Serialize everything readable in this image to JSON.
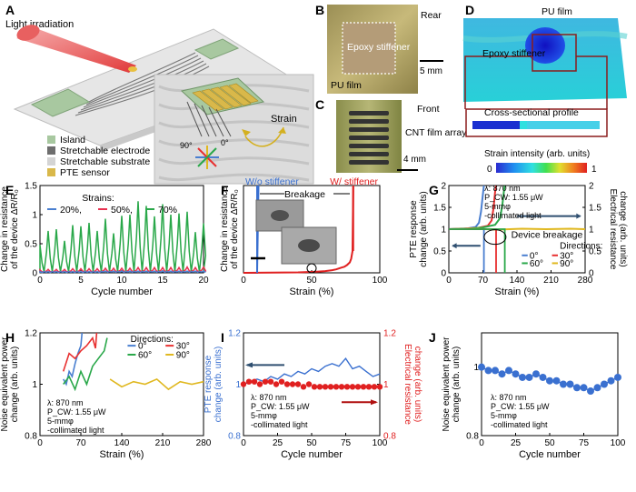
{
  "panels": {
    "A": {
      "letter": "A",
      "light": "Light irradiation",
      "strain": "Strain",
      "deg90": "90°",
      "deg0": "0°",
      "legend": [
        "Island",
        "Stretchable electrode",
        "Stretchable substrate",
        "PTE sensor"
      ],
      "legend_colors": [
        "#a8c8a0",
        "#6e6e6e",
        "#d4d4d4",
        "#d9b84a"
      ]
    },
    "B": {
      "letter": "B",
      "side": "Rear",
      "epoxy": "Epoxy stiffener",
      "pu": "PU film",
      "scale": "5 mm"
    },
    "C": {
      "letter": "C",
      "side": "Front",
      "cnt": "CNT film array",
      "scale": "4 mm"
    },
    "D": {
      "letter": "D",
      "pu": "PU film",
      "epoxy": "Epoxy stiffener",
      "cross": "Cross-sectional profile",
      "cbar_label": "Strain intensity (arb. units)",
      "cbar_min": "0",
      "cbar_max": "1"
    },
    "E": {
      "letter": "E",
      "ylabel": "Change in resistance of the device ΔR/R₀",
      "xlabel": "Cycle number",
      "legend_title": "Strains:",
      "legend": [
        "20%,",
        "50%,",
        "70%"
      ]
    },
    "F": {
      "letter": "F",
      "ylabel": "Change in resistance of the device ΔR/R₀",
      "xlabel": "Strain (%)",
      "wo": "W/o stiffener",
      "w": "W/ stiffener",
      "breakage": "Breakage"
    },
    "G": {
      "letter": "G",
      "ylabel": "PTE response change (arb. units)",
      "ylabel2": "Electrical resistance change (arb. units)",
      "xlabel": "Strain (%)",
      "cond": [
        "λ: 870 nm",
        "P_CW: 1.55 μW",
        "5-mmφ",
        "-collimated light"
      ],
      "breakage": "Device breakage",
      "dir_title": "Directions:",
      "dirs": [
        "0°",
        "30°",
        "60°",
        "90°"
      ]
    },
    "H": {
      "letter": "H",
      "ylabel": "Noise equivalent power change (arb. units)",
      "xlabel": "Strain (%)",
      "dir_title": "Directions:",
      "dirs": [
        "0°",
        "30°",
        "60°",
        "90°"
      ],
      "cond": [
        "λ: 870 nm",
        "P_CW: 1.55 μW",
        "5-mmφ",
        "-collimated light"
      ]
    },
    "I": {
      "letter": "I",
      "ylabel": "PTE response change (arb. units)",
      "ylabel2": "Electrical resistance change (arb. units)",
      "xlabel": "Cycle number",
      "cond": [
        "λ: 870 nm",
        "P_CW: 1.55 μW",
        "5-mmφ",
        "-collimated light"
      ]
    },
    "J": {
      "letter": "J",
      "ylabel": "Noise equivalent power change (arb. units)",
      "xlabel": "Cycle number",
      "cond": [
        "λ: 870 nm",
        "P_CW: 1.55 μW",
        "5-mmφ",
        "-collimated light"
      ]
    }
  },
  "colors": {
    "c0": "#4a7fd0",
    "c30": "#e83030",
    "c60": "#2aa84a",
    "c90": "#e0b820",
    "red": "#e02020",
    "blue": "#3a70d0",
    "navy": "#2f4f70"
  },
  "chart_data": [
    {
      "id": "E",
      "type": "line",
      "xlabel": "Cycle number",
      "ylabel": "Change in resistance of the device ΔR/R₀",
      "xlim": [
        0,
        20
      ],
      "ylim": [
        0,
        1.5
      ],
      "xticks": [
        0,
        5,
        10,
        15,
        20
      ],
      "yticks": [
        0,
        0.5,
        1,
        1.5
      ],
      "series": [
        {
          "name": "70%",
          "color": "#2aa84a",
          "peaks": [
            0.48,
            0.72,
            0.75,
            0.55,
            0.82,
            0.8,
            0.86,
            0.72,
            0.93,
            0.68,
            0.98,
            1.0,
            1.23,
            1.15,
            0.97,
            1.18,
            1.0,
            1.02,
            1.05,
            0.7,
            0.85
          ]
        },
        {
          "name": "50%",
          "color": "#e83050",
          "peaks": [
            0.05,
            0.06,
            0.06,
            0.06,
            0.07,
            0.07,
            0.07,
            0.07,
            0.08,
            0.08,
            0.08,
            0.08,
            0.09,
            0.09,
            0.09,
            0.09,
            0.09,
            0.09,
            0.1,
            0.09,
            0.1
          ]
        },
        {
          "name": "20%",
          "color": "#4a7fd0",
          "peaks": [
            0.02,
            0.02,
            0.02,
            0.02,
            0.02,
            0.02,
            0.02,
            0.02,
            0.03,
            0.03,
            0.03,
            0.03,
            0.03,
            0.03,
            0.03,
            0.03,
            0.03,
            0.03,
            0.03,
            0.03,
            0.03
          ]
        }
      ]
    },
    {
      "id": "F",
      "type": "line",
      "xlabel": "Strain (%)",
      "ylim_text": "",
      "xlim": [
        0,
        100
      ],
      "xticks": [
        0,
        50,
        100
      ],
      "series": [
        {
          "name": "W/o stiffener",
          "color": "#3a70d0",
          "x": [
            0,
            10,
            10,
            11
          ],
          "y": [
            0,
            0,
            0,
            1
          ]
        },
        {
          "name": "W/ stiffener",
          "color": "#e02020",
          "x": [
            0,
            40,
            50,
            55,
            60,
            65,
            68,
            70,
            72,
            74,
            76,
            78,
            79,
            80,
            80.5
          ],
          "y": [
            0,
            0.005,
            0.01,
            0.015,
            0.02,
            0.03,
            0.04,
            0.05,
            0.06,
            0.07,
            0.09,
            0.12,
            0.16,
            0.25,
            1
          ]
        }
      ]
    },
    {
      "id": "G",
      "type": "line",
      "xlabel": "Strain (%)",
      "xlim": [
        0,
        280
      ],
      "ylim": [
        0,
        2
      ],
      "y2lim": [
        0,
        2
      ],
      "xticks": [
        0,
        70,
        140,
        210,
        280
      ],
      "yticks": [
        0,
        0.5,
        1,
        1.5,
        2
      ],
      "series": [
        {
          "name": "0°",
          "color": "#4a7fd0",
          "x": [
            0,
            20,
            40,
            55,
            62,
            66,
            70,
            72
          ],
          "y": [
            1,
            1.01,
            1.02,
            1.05,
            1.15,
            1.4,
            1.8,
            2
          ]
        },
        {
          "name": "30°",
          "color": "#e83030",
          "x": [
            0,
            30,
            60,
            80,
            88,
            92,
            95,
            97
          ],
          "y": [
            1,
            1.01,
            1.03,
            1.08,
            1.2,
            1.5,
            1.85,
            2
          ]
        },
        {
          "name": "60°",
          "color": "#2aa84a",
          "x": [
            0,
            40,
            70,
            95,
            105,
            110,
            113,
            115
          ],
          "y": [
            1,
            1.01,
            1.04,
            1.1,
            1.25,
            1.55,
            1.85,
            2
          ]
        },
        {
          "name": "90°",
          "color": "#e0b820",
          "x": [
            0,
            50,
            100,
            150,
            200,
            250,
            280
          ],
          "y": [
            1,
            1.01,
            0.99,
            1.01,
            1.0,
            1.01,
            1.0
          ]
        },
        {
          "name": "resistance 0°",
          "color": "#4a7fd0",
          "axis": "right",
          "x": [
            0,
            60,
            72,
            72
          ],
          "y": [
            1,
            1,
            1,
            0
          ]
        },
        {
          "name": "resistance 30°",
          "color": "#e83030",
          "axis": "right",
          "x": [
            0,
            85,
            97,
            97
          ],
          "y": [
            1,
            1,
            1,
            0
          ]
        },
        {
          "name": "resistance 60°",
          "color": "#2aa84a",
          "axis": "right",
          "x": [
            0,
            100,
            115,
            115
          ],
          "y": [
            1,
            1,
            1,
            0
          ]
        }
      ]
    },
    {
      "id": "H",
      "type": "line",
      "xlabel": "Strain (%)",
      "xlim": [
        0,
        280
      ],
      "ylim": [
        0.8,
        1.2
      ],
      "xticks": [
        0,
        70,
        140,
        210,
        280
      ],
      "yticks": [
        0.8,
        1,
        1.2
      ],
      "series": [
        {
          "name": "0°",
          "color": "#4a7fd0",
          "x": [
            40,
            45,
            50,
            55,
            60,
            65,
            70,
            72
          ],
          "y": [
            1.02,
            1.0,
            1.05,
            1.03,
            1.08,
            1.12,
            1.15,
            1.2
          ]
        },
        {
          "name": "30°",
          "color": "#e83030",
          "x": [
            40,
            50,
            60,
            70,
            80,
            90,
            95,
            97
          ],
          "y": [
            1.05,
            1.12,
            1.1,
            1.13,
            1.15,
            1.18,
            1.14,
            1.2
          ]
        },
        {
          "name": "60°",
          "color": "#2aa84a",
          "x": [
            40,
            50,
            60,
            70,
            80,
            90,
            100,
            110,
            115
          ],
          "y": [
            1.0,
            1.03,
            0.98,
            1.05,
            1.0,
            1.07,
            1.1,
            1.13,
            1.18
          ]
        },
        {
          "name": "90°",
          "color": "#e0b820",
          "x": [
            120,
            140,
            160,
            180,
            200,
            220,
            240,
            260,
            280
          ],
          "y": [
            1.02,
            0.99,
            1.01,
            1.0,
            1.02,
            0.98,
            1.01,
            1.0,
            1.01
          ]
        }
      ]
    },
    {
      "id": "I",
      "type": "line",
      "xlabel": "Cycle number",
      "xlim": [
        0,
        100
      ],
      "ylim": [
        0.8,
        1.2
      ],
      "y2lim": [
        0.8,
        1.2
      ],
      "xticks": [
        0,
        25,
        50,
        75,
        100
      ],
      "yticks": [
        0.8,
        1,
        1.2
      ],
      "series": [
        {
          "name": "PTE response",
          "color": "#3a70d0",
          "x": [
            0,
            5,
            10,
            15,
            20,
            25,
            30,
            35,
            40,
            45,
            50,
            55,
            60,
            65,
            70,
            75,
            80,
            85,
            90,
            95,
            100
          ],
          "y": [
            1.0,
            1.01,
            1.02,
            1.01,
            1.03,
            1.02,
            1.04,
            1.03,
            1.05,
            1.04,
            1.06,
            1.05,
            1.07,
            1.08,
            1.07,
            1.1,
            1.06,
            1.07,
            1.05,
            1.03,
            1.04
          ]
        },
        {
          "name": "Electrical resistance",
          "color": "#e02020",
          "axis": "right",
          "x": [
            0,
            4,
            8,
            12,
            16,
            20,
            24,
            28,
            32,
            36,
            40,
            44,
            48,
            52,
            56,
            60,
            64,
            68,
            72,
            76,
            80,
            84,
            88,
            92,
            96,
            100
          ],
          "y": [
            1.0,
            1.01,
            1.01,
            1.0,
            1.01,
            1.01,
            1.0,
            1.01,
            1.0,
            1.0,
            1.0,
            0.99,
            1.0,
            0.99,
            0.99,
            0.99,
            0.99,
            0.99,
            0.99,
            0.99,
            0.99,
            0.99,
            0.99,
            0.99,
            0.99,
            0.99
          ]
        }
      ]
    },
    {
      "id": "J",
      "type": "scatter",
      "xlabel": "Cycle number",
      "xlim": [
        0,
        100
      ],
      "ylim": [
        0.8,
        1.1
      ],
      "xticks": [
        0,
        25,
        50,
        75,
        100
      ],
      "yticks": [
        0.8,
        1
      ],
      "series": [
        {
          "name": "NEP",
          "color": "#3a70d0",
          "x": [
            0,
            5,
            10,
            15,
            20,
            25,
            30,
            35,
            40,
            45,
            50,
            55,
            60,
            65,
            70,
            75,
            80,
            85,
            90,
            95,
            100
          ],
          "y": [
            1.0,
            0.99,
            0.99,
            0.98,
            0.99,
            0.98,
            0.97,
            0.97,
            0.98,
            0.97,
            0.96,
            0.96,
            0.95,
            0.95,
            0.94,
            0.94,
            0.93,
            0.94,
            0.95,
            0.96,
            0.97
          ]
        }
      ]
    }
  ]
}
